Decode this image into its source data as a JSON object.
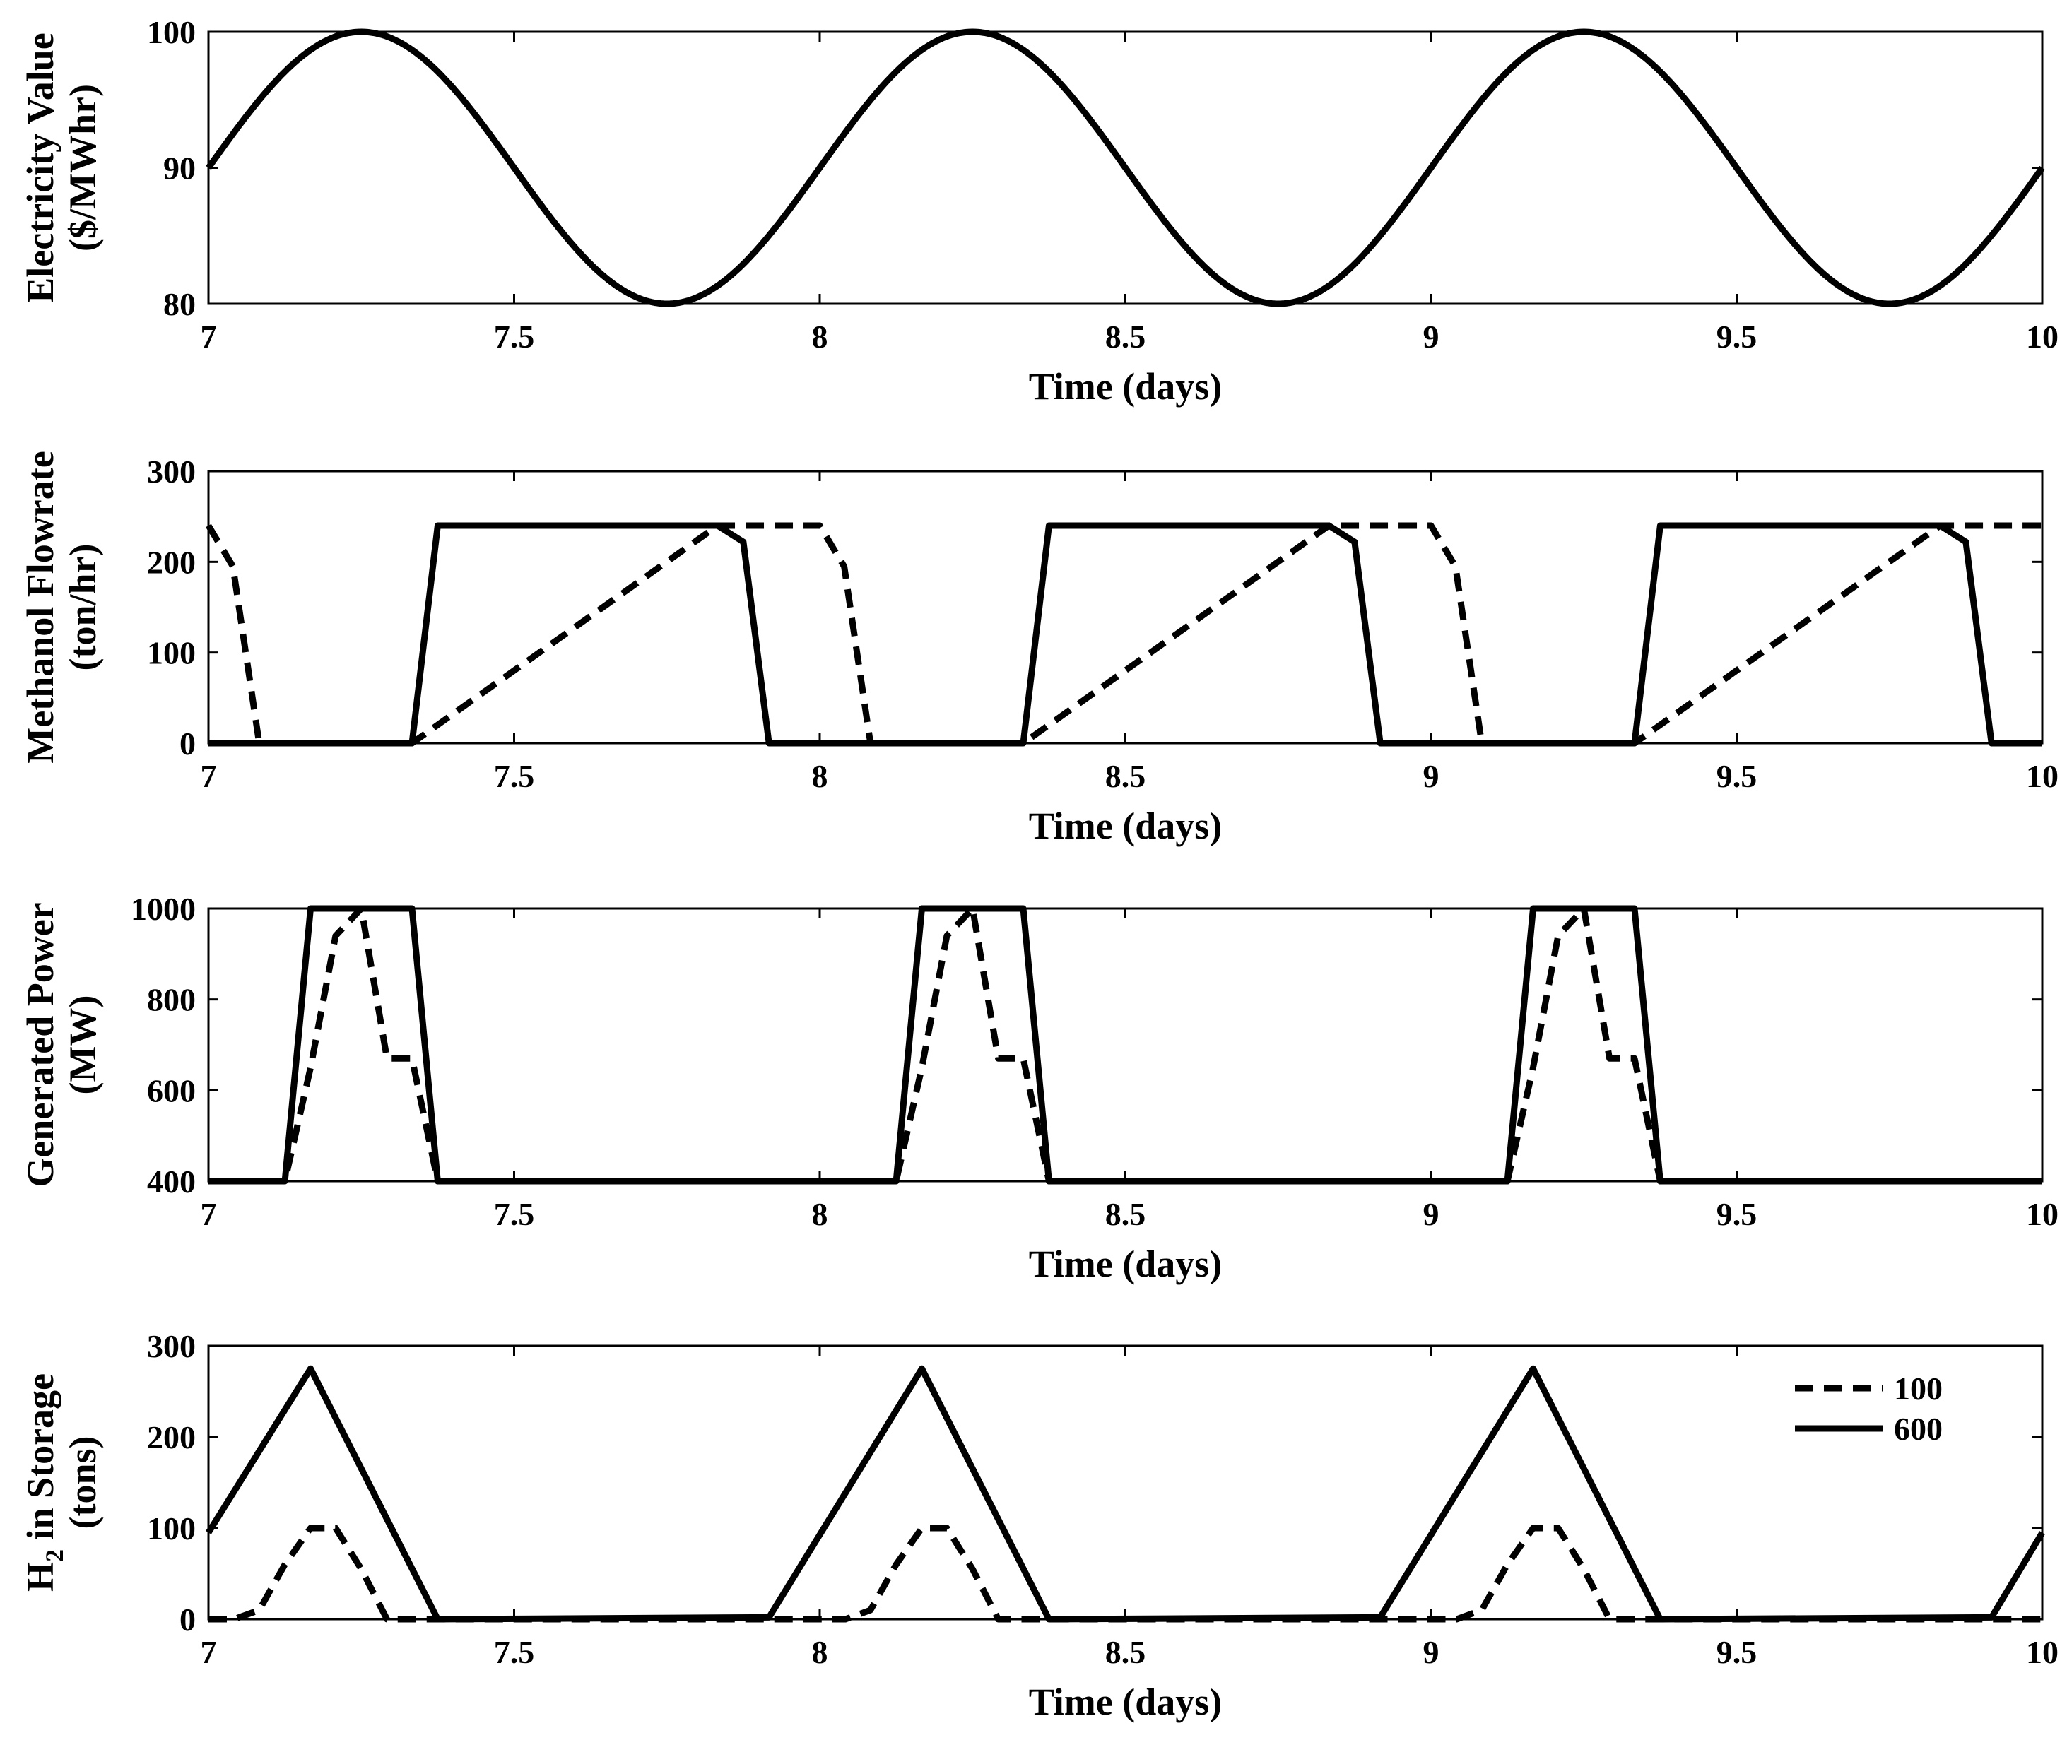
{
  "chart_data": [
    {
      "type": "line",
      "title": "",
      "xlabel": "Time (days)",
      "ylabel_lines": [
        "Electricity Value",
        "($/MWhr)"
      ],
      "xlim": [
        7,
        10
      ],
      "ylim": [
        80,
        100
      ],
      "xticks": [
        7,
        7.5,
        8,
        8.5,
        9,
        9.5,
        10
      ],
      "xtick_labels": [
        "7",
        "7.5",
        "8",
        "8.5",
        "9",
        "9.5",
        "10"
      ],
      "yticks": [
        80,
        90,
        100
      ],
      "ytick_labels": [
        "80",
        "90",
        "100"
      ],
      "grid": false,
      "series": [
        {
          "style": "solid",
          "function": "90 + 10*sin(2*pi*x)",
          "x": [
            7.0,
            7.125,
            7.25,
            7.375,
            7.5,
            7.625,
            7.75,
            7.875,
            8.0,
            8.125,
            8.25,
            8.375,
            8.5,
            8.625,
            8.75,
            8.875,
            9.0,
            9.125,
            9.25,
            9.375,
            9.5,
            9.625,
            9.75,
            9.875,
            10.0
          ],
          "y": [
            90,
            97.07,
            100,
            97.07,
            90,
            82.93,
            80,
            82.93,
            90,
            97.07,
            100,
            97.07,
            90,
            82.93,
            80,
            82.93,
            90,
            97.07,
            100,
            97.07,
            90,
            82.93,
            80,
            82.93,
            90
          ]
        }
      ]
    },
    {
      "type": "line",
      "title": "",
      "xlabel": "Time (days)",
      "ylabel_lines": [
        "Methanol Flowrate",
        "(ton/hr)"
      ],
      "xlim": [
        7,
        10
      ],
      "ylim": [
        0,
        300
      ],
      "xticks": [
        7,
        7.5,
        8,
        8.5,
        9,
        9.5,
        10
      ],
      "xtick_labels": [
        "7",
        "7.5",
        "8",
        "8.5",
        "9",
        "9.5",
        "10"
      ],
      "yticks": [
        0,
        100,
        200,
        300
      ],
      "ytick_labels": [
        "0",
        "100",
        "200",
        "300"
      ],
      "grid": false,
      "series": [
        {
          "legend_label": "100",
          "style": "dashed",
          "x": [
            7.0,
            7.04,
            7.083,
            7.333,
            7.833,
            8.0,
            8.04,
            8.083,
            8.333,
            8.833,
            9.0,
            9.04,
            9.083,
            9.333,
            9.833,
            10.0
          ],
          "y": [
            240,
            195,
            0,
            0,
            240,
            240,
            195,
            0,
            0,
            240,
            240,
            195,
            0,
            0,
            240,
            240
          ]
        },
        {
          "legend_label": "600",
          "style": "solid",
          "x": [
            7.0,
            7.333,
            7.375,
            7.833,
            7.875,
            7.917,
            8.333,
            8.375,
            8.833,
            8.875,
            8.917,
            9.333,
            9.375,
            9.833,
            9.875,
            9.917,
            10.0
          ],
          "y": [
            0,
            0,
            240,
            240,
            222,
            0,
            0,
            240,
            240,
            222,
            0,
            0,
            240,
            240,
            222,
            0,
            0
          ]
        }
      ]
    },
    {
      "type": "line",
      "title": "",
      "xlabel": "Time (days)",
      "ylabel_lines": [
        "Generated Power",
        "(MW)"
      ],
      "xlim": [
        7,
        10
      ],
      "ylim": [
        400,
        1000
      ],
      "xticks": [
        7,
        7.5,
        8,
        8.5,
        9,
        9.5,
        10
      ],
      "xtick_labels": [
        "7",
        "7.5",
        "8",
        "8.5",
        "9",
        "9.5",
        "10"
      ],
      "yticks": [
        400,
        600,
        800,
        1000
      ],
      "ytick_labels": [
        "400",
        "600",
        "800",
        "1000"
      ],
      "grid": false,
      "series": [
        {
          "legend_label": "100",
          "style": "dashed",
          "x": [
            7.0,
            7.125,
            7.167,
            7.208,
            7.25,
            7.292,
            7.333,
            7.375,
            8.125,
            8.167,
            8.208,
            8.25,
            8.292,
            8.333,
            8.375,
            9.125,
            9.167,
            9.208,
            9.25,
            9.292,
            9.333,
            9.375,
            10.0
          ],
          "y": [
            400,
            400,
            650,
            940,
            1000,
            670,
            670,
            400,
            400,
            650,
            940,
            1000,
            670,
            670,
            400,
            400,
            650,
            940,
            1000,
            670,
            670,
            400,
            400
          ]
        },
        {
          "legend_label": "600",
          "style": "solid",
          "x": [
            7.0,
            7.125,
            7.167,
            7.333,
            7.375,
            8.125,
            8.167,
            8.333,
            8.375,
            9.125,
            9.167,
            9.333,
            9.375,
            10.0
          ],
          "y": [
            400,
            400,
            1000,
            1000,
            400,
            400,
            1000,
            1000,
            400,
            400,
            1000,
            1000,
            400,
            400
          ]
        }
      ]
    },
    {
      "type": "line",
      "title": "",
      "xlabel": "Time (days)",
      "ylabel_lines": [
        "H2 in Storage",
        "(tons)"
      ],
      "ylabel_main": "H",
      "ylabel_sub": "2",
      "ylabel_rest": " in Storage",
      "ylabel_line2": "(tons)",
      "xlim": [
        7,
        10
      ],
      "ylim": [
        0,
        300
      ],
      "xticks": [
        7,
        7.5,
        8,
        8.5,
        9,
        9.5,
        10
      ],
      "xtick_labels": [
        "7",
        "7.5",
        "8",
        "8.5",
        "9",
        "9.5",
        "10"
      ],
      "yticks": [
        0,
        100,
        200,
        300
      ],
      "ytick_labels": [
        "0",
        "100",
        "200",
        "300"
      ],
      "grid": false,
      "legend": {
        "placement": "top-right",
        "entries": [
          {
            "label": "100",
            "style": "dashed"
          },
          {
            "label": "600",
            "style": "solid"
          }
        ]
      },
      "series": [
        {
          "legend_label": "100",
          "style": "dashed",
          "x": [
            7.0,
            7.042,
            7.083,
            7.125,
            7.167,
            7.208,
            7.25,
            7.292,
            7.333,
            8.042,
            8.083,
            8.125,
            8.167,
            8.208,
            8.25,
            8.292,
            8.333,
            9.042,
            9.083,
            9.125,
            9.167,
            9.208,
            9.25,
            9.292,
            9.333,
            10.0
          ],
          "y": [
            0,
            0,
            10,
            60,
            100,
            100,
            55,
            0,
            0,
            0,
            10,
            60,
            100,
            100,
            55,
            0,
            0,
            0,
            10,
            60,
            100,
            100,
            55,
            0,
            0,
            0
          ]
        },
        {
          "legend_label": "600",
          "style": "solid",
          "x": [
            7.0,
            7.167,
            7.375,
            7.917,
            8.167,
            8.375,
            8.917,
            9.167,
            9.375,
            9.917,
            10.0
          ],
          "y": [
            95,
            275,
            0,
            2,
            275,
            0,
            2,
            275,
            0,
            2,
            95
          ]
        }
      ]
    }
  ]
}
